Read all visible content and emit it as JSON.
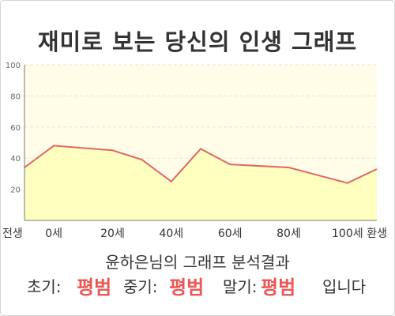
{
  "title": "재미로 보는 당신의 인생 그래프",
  "chart_data": {
    "type": "area",
    "x_labels": [
      "전생",
      "0세",
      "20세",
      "40세",
      "60세",
      "80세",
      "100세",
      "환생"
    ],
    "x": [
      -10,
      0,
      20,
      40,
      60,
      80,
      100,
      110
    ],
    "points": [
      {
        "x": -10,
        "y": 34
      },
      {
        "x": 0,
        "y": 48
      },
      {
        "x": 20,
        "y": 45
      },
      {
        "x": 30,
        "y": 39
      },
      {
        "x": 40,
        "y": 25
      },
      {
        "x": 50,
        "y": 46
      },
      {
        "x": 60,
        "y": 36
      },
      {
        "x": 80,
        "y": 34
      },
      {
        "x": 100,
        "y": 24
      },
      {
        "x": 110,
        "y": 33
      }
    ],
    "y_ticks": [
      20,
      40,
      60,
      80,
      100
    ],
    "ylim": [
      0,
      100
    ],
    "grid": true,
    "colors": {
      "line": "#e06666",
      "fill": "#ffffc0",
      "background": "#fffde8"
    }
  },
  "summary": {
    "headline": "윤하은님의 그래프 분석결과",
    "early_label": "초기:",
    "early_value": "평범",
    "middle_label": "중기:",
    "middle_value": "평범",
    "late_label": "말기:",
    "late_value": "평범",
    "suffix": "입니다"
  }
}
